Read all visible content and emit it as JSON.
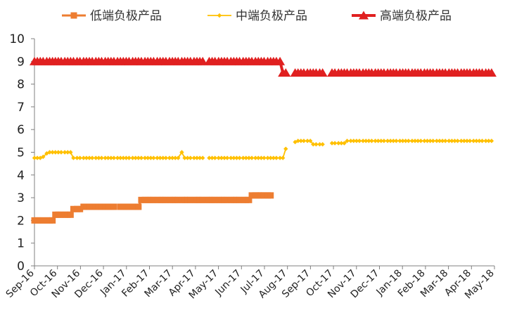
{
  "chart_data": {
    "type": "line",
    "title": "",
    "xlabel": "",
    "ylabel": "",
    "ylim": [
      0,
      10
    ],
    "y_ticks": [
      0,
      1,
      2,
      3,
      4,
      5,
      6,
      7,
      8,
      9,
      10
    ],
    "x_ticks": [
      "Sep-16",
      "Oct-16",
      "Nov-16",
      "Dec-16",
      "Jan-17",
      "Feb-17",
      "Mar-17",
      "Apr-17",
      "May-17",
      "Jun-17",
      "Jul-17",
      "Aug-17",
      "Sep-17",
      "Oct-17",
      "Nov-17",
      "Dec-17",
      "Jan-18",
      "Feb-18",
      "Mar-18",
      "Apr-18",
      "May-18"
    ],
    "legend_position": "top",
    "grid": false,
    "series": [
      {
        "name": "低端负极产品",
        "color": "#ED7D31",
        "marker": "square",
        "segments": [
          {
            "x": [
              "2016-09-01",
              "2016-09-05",
              "2016-09-09",
              "2016-09-13",
              "2016-09-18",
              "2016-09-22",
              "2016-09-26",
              "2016-09-30",
              "2016-10-04",
              "2016-10-08",
              "2016-10-13",
              "2016-10-17",
              "2016-10-21",
              "2016-10-25",
              "2016-10-30",
              "2016-11-03"
            ],
            "y": [
              2.0,
              2.0,
              2.0,
              2.0,
              2.0,
              2.0,
              2.0,
              2.25,
              2.25,
              2.25,
              2.25,
              2.25,
              2.25,
              2.5,
              2.5,
              2.5
            ]
          },
          {
            "x": [
              "2016-11-08",
              "2016-11-12",
              "2016-11-16",
              "2016-11-20",
              "2016-11-25",
              "2016-11-29",
              "2016-12-03",
              "2016-12-08",
              "2016-12-12",
              "2016-12-16",
              "2016-12-20"
            ],
            "y": [
              2.6,
              2.6,
              2.6,
              2.6,
              2.6,
              2.6,
              2.6,
              2.6,
              2.6,
              2.6,
              2.6
            ]
          },
          {
            "x": [
              "2016-12-29",
              "2017-01-02",
              "2017-01-06",
              "2017-01-10",
              "2017-01-15",
              "2017-01-19",
              "2017-01-23",
              "2017-01-27",
              "2017-02-01",
              "2017-02-05",
              "2017-02-09",
              "2017-02-13",
              "2017-02-18",
              "2017-02-22",
              "2017-02-26",
              "2017-03-02",
              "2017-03-07",
              "2017-03-11",
              "2017-03-15",
              "2017-03-19",
              "2017-03-24",
              "2017-03-28",
              "2017-04-01",
              "2017-04-05",
              "2017-04-10",
              "2017-04-14",
              "2017-04-18",
              "2017-04-22",
              "2017-04-27",
              "2017-05-01",
              "2017-05-05",
              "2017-05-09",
              "2017-05-14",
              "2017-05-18",
              "2017-05-22",
              "2017-05-26",
              "2017-05-31",
              "2017-06-04",
              "2017-06-08",
              "2017-06-12",
              "2017-06-17",
              "2017-06-21",
              "2017-06-25",
              "2017-06-29",
              "2017-07-04",
              "2017-07-08",
              "2017-07-12",
              "2017-07-16",
              "2017-07-21",
              "2017-07-25"
            ],
            "y": [
              2.6,
              2.6,
              2.6,
              2.6,
              2.6,
              2.6,
              2.6,
              2.9,
              2.9,
              2.9,
              2.9,
              2.9,
              2.9,
              2.9,
              2.9,
              2.9,
              2.9,
              2.9,
              2.9,
              2.9,
              2.9,
              2.9,
              2.9,
              2.9,
              2.9,
              2.9,
              2.9,
              2.9,
              2.9,
              2.9,
              2.9,
              2.9,
              2.9,
              2.9,
              2.9,
              2.9,
              2.9,
              2.9,
              2.9,
              2.9,
              2.9,
              2.9,
              2.9,
              3.1,
              3.1,
              3.1,
              3.1,
              3.1,
              3.1,
              3.1
            ]
          }
        ]
      },
      {
        "name": "中端负极产品",
        "color": "#FFC000",
        "marker": "diamond",
        "segments": [
          {
            "x": [
              "2016-09-01",
              "2016-09-05",
              "2016-09-09",
              "2016-09-13",
              "2016-09-18",
              "2016-09-22",
              "2016-09-26",
              "2016-09-30",
              "2016-10-04",
              "2016-10-08",
              "2016-10-13",
              "2016-10-17",
              "2016-10-21",
              "2016-10-25",
              "2016-10-30",
              "2016-11-03",
              "2016-11-08",
              "2016-11-12",
              "2016-11-16",
              "2016-11-20",
              "2016-11-25",
              "2016-11-29",
              "2016-12-03",
              "2016-12-08",
              "2016-12-12",
              "2016-12-16",
              "2016-12-20",
              "2016-12-25",
              "2016-12-29",
              "2017-01-02",
              "2017-01-06",
              "2017-01-10",
              "2017-01-15",
              "2017-01-19",
              "2017-01-23",
              "2017-01-27",
              "2017-02-01",
              "2017-02-05",
              "2017-02-09",
              "2017-02-13",
              "2017-02-18",
              "2017-02-22",
              "2017-02-26",
              "2017-03-02",
              "2017-03-07",
              "2017-03-11",
              "2017-03-15",
              "2017-03-19",
              "2017-03-24",
              "2017-03-28",
              "2017-04-01",
              "2017-04-05",
              "2017-04-10",
              "2017-04-14",
              "2017-04-18",
              "2017-04-22"
            ],
            "y": [
              4.75,
              4.75,
              4.75,
              4.8,
              4.95,
              5.0,
              5.0,
              5.0,
              5.0,
              5.0,
              5.0,
              5.0,
              5.0,
              4.75,
              4.75,
              4.75,
              4.75,
              4.75,
              4.75,
              4.75,
              4.75,
              4.75,
              4.75,
              4.75,
              4.75,
              4.75,
              4.75,
              4.75,
              4.75,
              4.75,
              4.75,
              4.75,
              4.75,
              4.75,
              4.75,
              4.75,
              4.75,
              4.75,
              4.75,
              4.75,
              4.75,
              4.75,
              4.75,
              4.75,
              4.75,
              4.75,
              4.75,
              4.75,
              5.0,
              4.75,
              4.75,
              4.75,
              4.75,
              4.75,
              4.75,
              4.75
            ]
          },
          {
            "x": [
              "2017-05-01",
              "2017-05-05",
              "2017-05-09",
              "2017-05-14",
              "2017-05-18",
              "2017-05-22",
              "2017-05-26",
              "2017-05-31",
              "2017-06-04",
              "2017-06-08",
              "2017-06-12",
              "2017-06-17",
              "2017-06-21",
              "2017-06-25",
              "2017-06-29",
              "2017-07-04",
              "2017-07-08",
              "2017-07-12",
              "2017-07-16",
              "2017-07-21",
              "2017-07-25",
              "2017-07-29",
              "2017-08-02",
              "2017-08-07",
              "2017-08-11",
              "2017-08-15"
            ],
            "y": [
              4.75,
              4.75,
              4.75,
              4.75,
              4.75,
              4.75,
              4.75,
              4.75,
              4.75,
              4.75,
              4.75,
              4.75,
              4.75,
              4.75,
              4.75,
              4.75,
              4.75,
              4.75,
              4.75,
              4.75,
              4.75,
              4.75,
              4.75,
              4.75,
              4.75,
              5.15
            ]
          },
          {
            "x": [
              "2017-08-28",
              "2017-09-01",
              "2017-09-05",
              "2017-09-09",
              "2017-09-14",
              "2017-09-18",
              "2017-09-22",
              "2017-09-26",
              "2017-10-01",
              "2017-10-05"
            ],
            "y": [
              5.45,
              5.5,
              5.5,
              5.5,
              5.5,
              5.5,
              5.35,
              5.35,
              5.35,
              5.35
            ]
          },
          {
            "x": [
              "2017-10-18",
              "2017-10-22",
              "2017-10-27",
              "2017-10-31",
              "2017-11-04",
              "2017-11-08",
              "2017-11-13",
              "2017-11-17",
              "2017-11-21",
              "2017-11-25",
              "2017-11-30",
              "2017-12-04",
              "2017-12-08",
              "2017-12-12",
              "2017-12-17",
              "2017-12-21",
              "2017-12-25",
              "2017-12-29",
              "2018-01-03",
              "2018-01-07",
              "2018-01-11",
              "2018-01-15",
              "2018-01-20",
              "2018-01-24",
              "2018-01-28",
              "2018-02-01",
              "2018-02-06",
              "2018-02-10",
              "2018-02-14",
              "2018-02-18",
              "2018-02-23",
              "2018-02-27",
              "2018-03-03",
              "2018-03-07",
              "2018-03-12",
              "2018-03-16",
              "2018-03-20",
              "2018-03-24",
              "2018-03-29",
              "2018-04-02",
              "2018-04-06",
              "2018-04-10",
              "2018-04-15",
              "2018-04-19",
              "2018-04-23",
              "2018-04-27",
              "2018-05-02",
              "2018-05-06",
              "2018-05-10",
              "2018-05-14",
              "2018-05-19",
              "2018-05-23",
              "2018-05-27"
            ],
            "y": [
              5.4,
              5.4,
              5.4,
              5.4,
              5.4,
              5.5,
              5.5,
              5.5,
              5.5,
              5.5,
              5.5,
              5.5,
              5.5,
              5.5,
              5.5,
              5.5,
              5.5,
              5.5,
              5.5,
              5.5,
              5.5,
              5.5,
              5.5,
              5.5,
              5.5,
              5.5,
              5.5,
              5.5,
              5.5,
              5.5,
              5.5,
              5.5,
              5.5,
              5.5,
              5.5,
              5.5,
              5.5,
              5.5,
              5.5,
              5.5,
              5.5,
              5.5,
              5.5,
              5.5,
              5.5,
              5.5,
              5.5,
              5.5,
              5.5,
              5.5,
              5.5,
              5.5,
              5.5
            ]
          }
        ]
      },
      {
        "name": "高端负极产品",
        "color": "#E02020",
        "marker": "triangle",
        "segments": [
          {
            "x": [
              "2016-09-01",
              "2016-09-05",
              "2016-09-09",
              "2016-09-13",
              "2016-09-18",
              "2016-09-22",
              "2016-09-26",
              "2016-09-30",
              "2016-10-04",
              "2016-10-08",
              "2016-10-13",
              "2016-10-17",
              "2016-10-21",
              "2016-10-25",
              "2016-10-30",
              "2016-11-03",
              "2016-11-08",
              "2016-11-12",
              "2016-11-16",
              "2016-11-20",
              "2016-11-25",
              "2016-11-29",
              "2016-12-03",
              "2016-12-08",
              "2016-12-12",
              "2016-12-16",
              "2016-12-20",
              "2016-12-25",
              "2016-12-29",
              "2017-01-02",
              "2017-01-06",
              "2017-01-10",
              "2017-01-15",
              "2017-01-19",
              "2017-01-23",
              "2017-01-27",
              "2017-02-01",
              "2017-02-05",
              "2017-02-09",
              "2017-02-13",
              "2017-02-18",
              "2017-02-22",
              "2017-02-26",
              "2017-03-02",
              "2017-03-07",
              "2017-03-11",
              "2017-03-15",
              "2017-03-19",
              "2017-03-24",
              "2017-03-28",
              "2017-04-01",
              "2017-04-05",
              "2017-04-10",
              "2017-04-14",
              "2017-04-18",
              "2017-04-22"
            ],
            "y": [
              9,
              9,
              9,
              9,
              9,
              9,
              9,
              9,
              9,
              9,
              9,
              9,
              9,
              9,
              9,
              9,
              9,
              9,
              9,
              9,
              9,
              9,
              9,
              9,
              9,
              9,
              9,
              9,
              9,
              9,
              9,
              9,
              9,
              9,
              9,
              9,
              9,
              9,
              9,
              9,
              9,
              9,
              9,
              9,
              9,
              9,
              9,
              9,
              9,
              9,
              9,
              9,
              9,
              9,
              9,
              9
            ]
          },
          {
            "x": [
              "2017-05-01",
              "2017-05-05",
              "2017-05-09",
              "2017-05-14",
              "2017-05-18",
              "2017-05-22",
              "2017-05-26",
              "2017-05-31",
              "2017-06-04",
              "2017-06-08",
              "2017-06-12",
              "2017-06-17",
              "2017-06-21",
              "2017-06-25",
              "2017-06-29",
              "2017-07-04",
              "2017-07-08",
              "2017-07-12",
              "2017-07-16",
              "2017-07-21",
              "2017-07-25",
              "2017-07-29",
              "2017-08-02",
              "2017-08-07",
              "2017-08-11",
              "2017-08-15"
            ],
            "y": [
              9,
              9,
              9,
              9,
              9,
              9,
              9,
              9,
              9,
              9,
              9,
              9,
              9,
              9,
              9,
              9,
              9,
              9,
              9,
              9,
              9,
              9,
              9,
              9,
              8.5,
              8.5
            ]
          },
          {
            "x": [
              "2017-08-28",
              "2017-09-01",
              "2017-09-05",
              "2017-09-09",
              "2017-09-14",
              "2017-09-18",
              "2017-09-22",
              "2017-09-26",
              "2017-10-01",
              "2017-10-05"
            ],
            "y": [
              8.5,
              8.5,
              8.5,
              8.5,
              8.5,
              8.5,
              8.5,
              8.5,
              8.5,
              8.5
            ]
          },
          {
            "x": [
              "2017-10-18",
              "2017-10-22",
              "2017-10-27",
              "2017-10-31",
              "2017-11-04",
              "2017-11-08",
              "2017-11-13",
              "2017-11-17",
              "2017-11-21",
              "2017-11-25",
              "2017-11-30",
              "2017-12-04",
              "2017-12-08",
              "2017-12-12",
              "2017-12-17",
              "2017-12-21",
              "2017-12-25",
              "2017-12-29",
              "2018-01-03",
              "2018-01-07",
              "2018-01-11",
              "2018-01-15",
              "2018-01-20",
              "2018-01-24",
              "2018-01-28",
              "2018-02-01",
              "2018-02-06",
              "2018-02-10",
              "2018-02-14",
              "2018-02-18",
              "2018-02-23",
              "2018-02-27",
              "2018-03-03",
              "2018-03-07",
              "2018-03-12",
              "2018-03-16",
              "2018-03-20",
              "2018-03-24",
              "2018-03-29",
              "2018-04-02",
              "2018-04-06",
              "2018-04-10",
              "2018-04-15",
              "2018-04-19",
              "2018-04-23",
              "2018-04-27",
              "2018-05-02",
              "2018-05-06",
              "2018-05-10",
              "2018-05-14",
              "2018-05-19",
              "2018-05-23",
              "2018-05-27"
            ],
            "y": [
              8.5,
              8.5,
              8.5,
              8.5,
              8.5,
              8.5,
              8.5,
              8.5,
              8.5,
              8.5,
              8.5,
              8.5,
              8.5,
              8.5,
              8.5,
              8.5,
              8.5,
              8.5,
              8.5,
              8.5,
              8.5,
              8.5,
              8.5,
              8.5,
              8.5,
              8.5,
              8.5,
              8.5,
              8.5,
              8.5,
              8.5,
              8.5,
              8.5,
              8.5,
              8.5,
              8.5,
              8.5,
              8.5,
              8.5,
              8.5,
              8.5,
              8.5,
              8.5,
              8.5,
              8.5,
              8.5,
              8.5,
              8.5,
              8.5,
              8.5,
              8.5,
              8.5,
              8.5
            ]
          }
        ]
      }
    ]
  }
}
